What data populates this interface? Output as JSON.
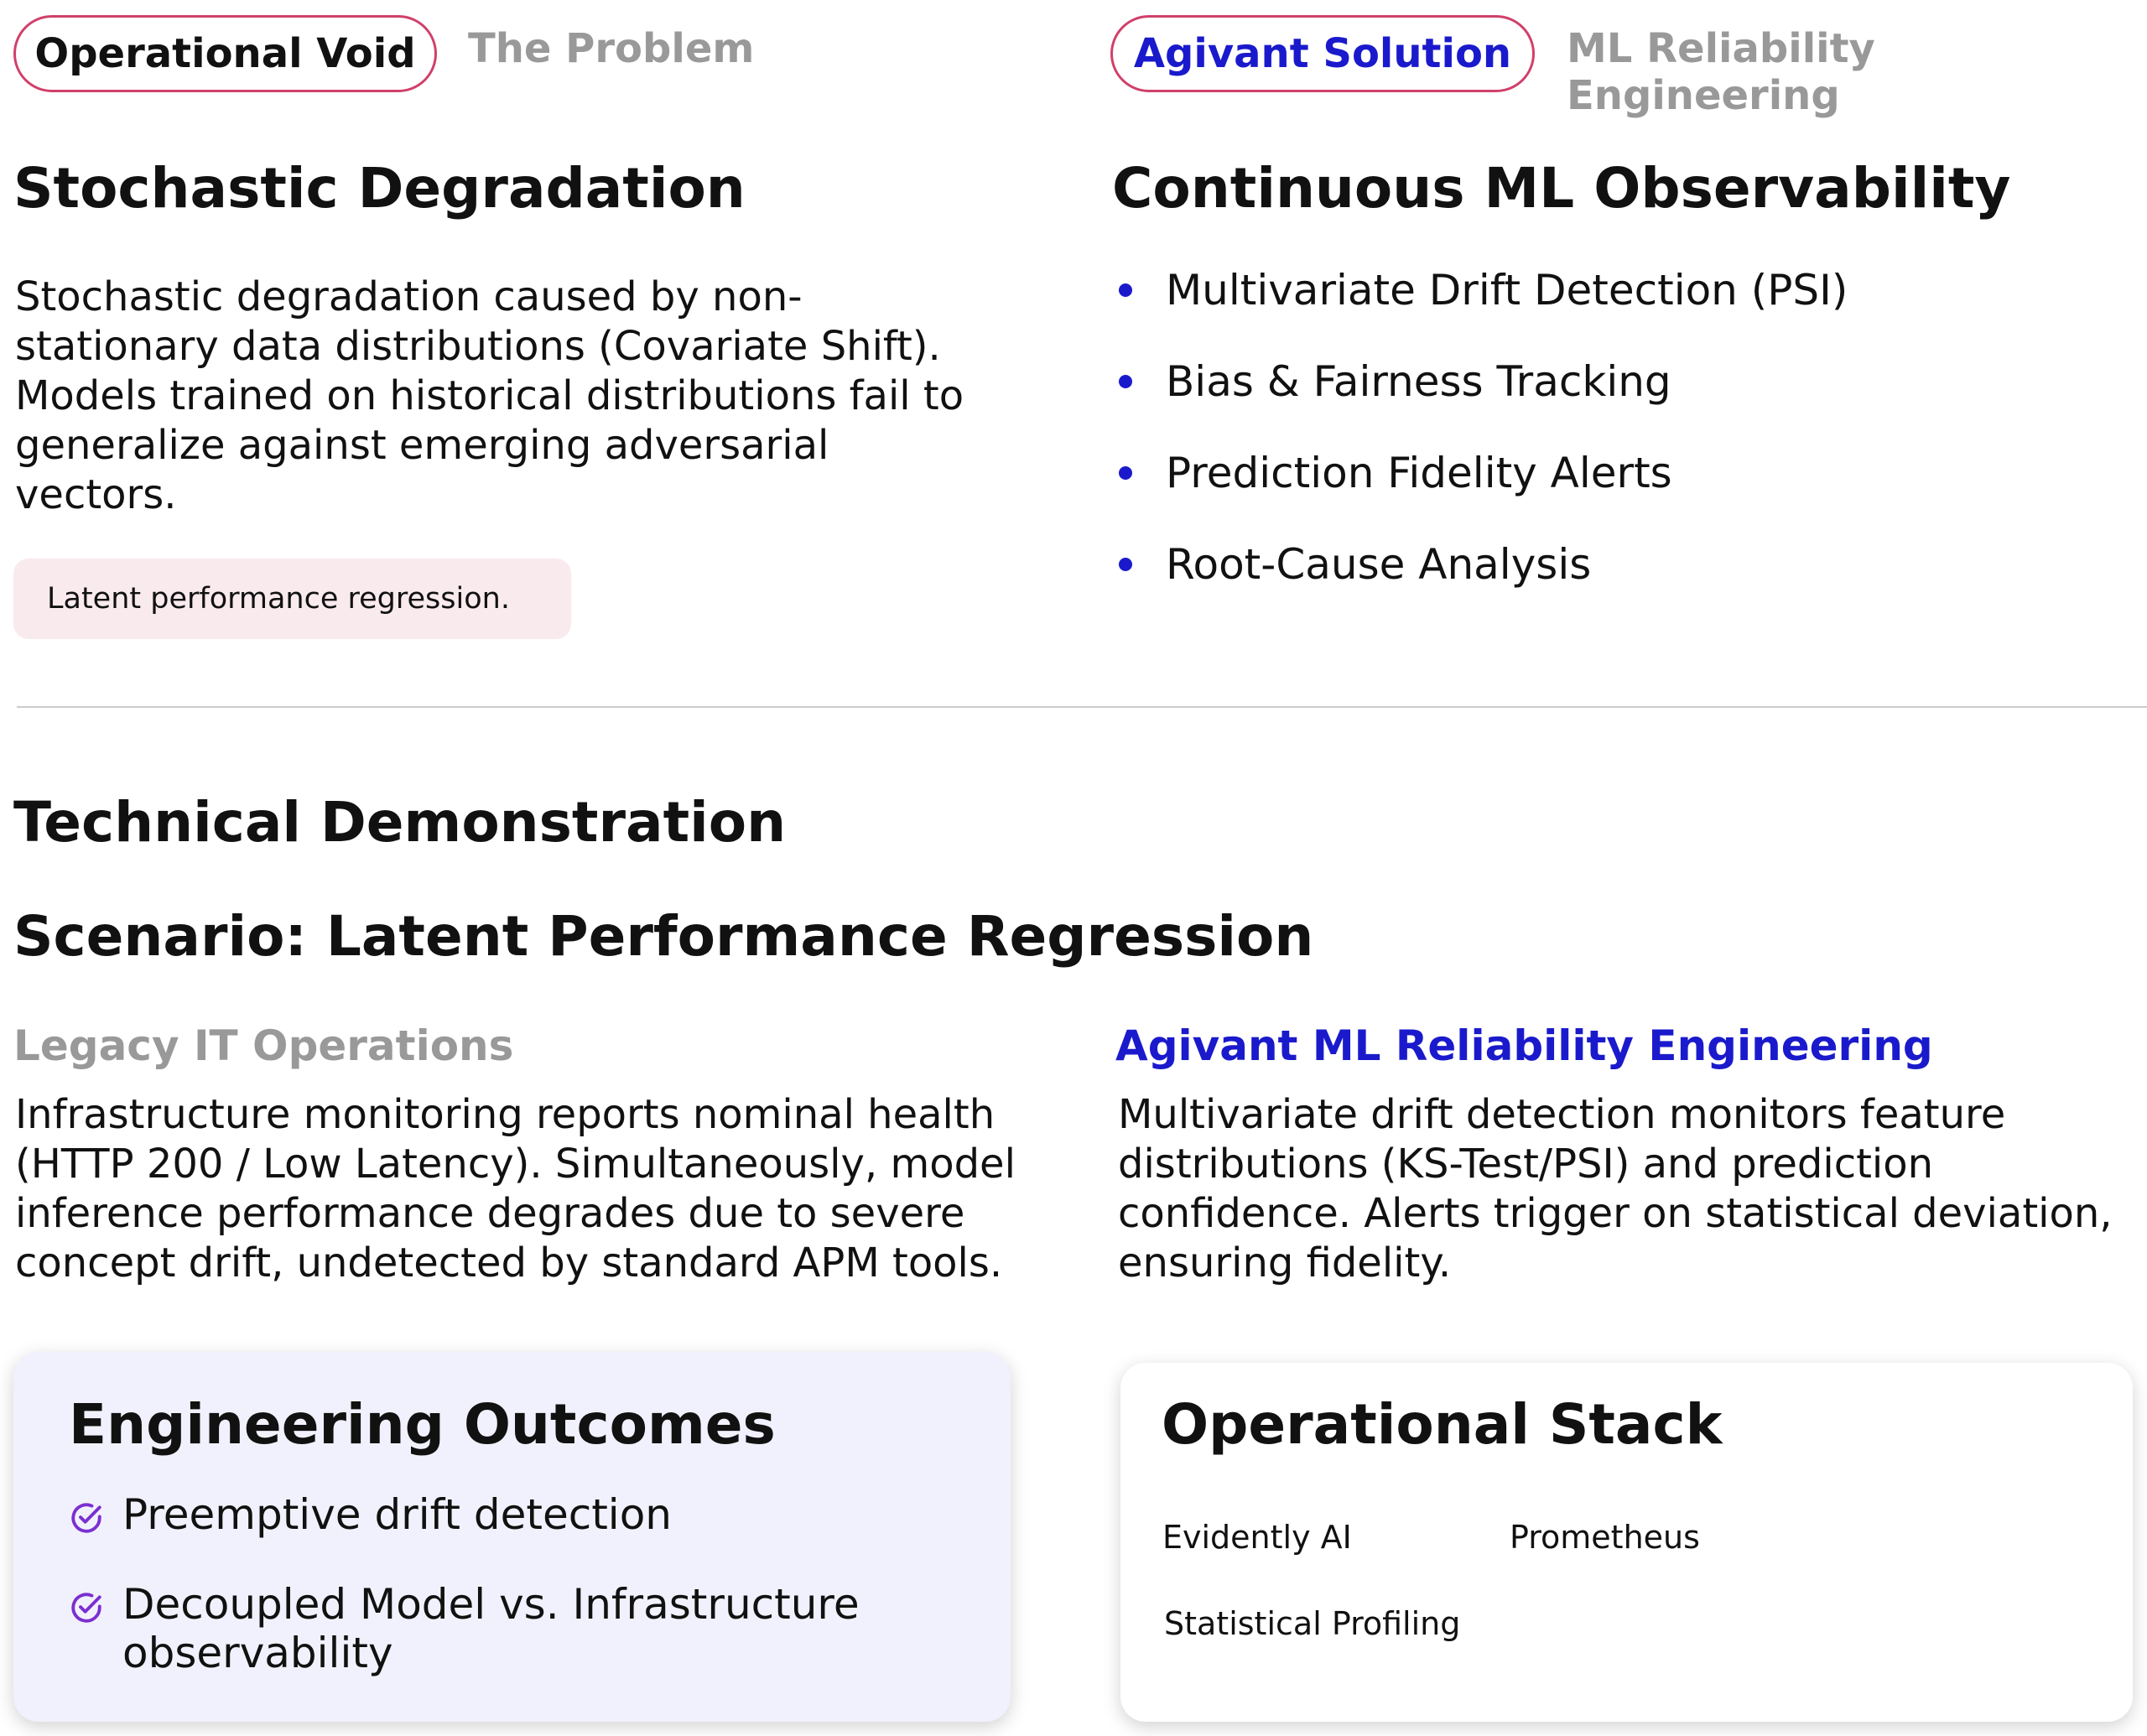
{
  "problem": {
    "pill": "Operational Void",
    "tab": "The Problem",
    "heading": "Stochastic Degradation",
    "body": "Stochastic degradation caused by non-stationary data distributions (Covariate Shift). Models trained on historical distributions fail to generalize against emerging adversarial vectors.",
    "note": "Latent performance regression."
  },
  "solution": {
    "pill": "Agivant Solution",
    "tab": "ML Reliability Engineering",
    "heading": "Continuous ML Observability",
    "bullets": [
      "Multivariate Drift Detection (PSI)",
      "Bias & Fairness Tracking",
      "Prediction Fidelity Alerts",
      "Root-Cause Analysis"
    ]
  },
  "demo": {
    "title": "Technical Demonstration",
    "scenario": "Scenario: Latent Performance Regression",
    "legacy": {
      "label": "Legacy IT Operations",
      "body": "Infrastructure monitoring reports nominal health (HTTP 200 / Low Latency). Simultaneously, model inference performance degrades due to severe concept drift, undetected by standard APM tools."
    },
    "agivant": {
      "label": "Agivant ML Reliability Engineering",
      "body": "Multivariate drift detection monitors feature distributions (KS-Test/PSI) and prediction confidence. Alerts trigger on statistical deviation, ensuring fidelity."
    }
  },
  "outcomes": {
    "title": "Engineering Outcomes",
    "items": [
      "Preemptive drift detection",
      "Decoupled Model vs. Infrastructure observability"
    ],
    "icon": "check-circle-icon"
  },
  "stack": {
    "title": "Operational Stack",
    "items": [
      "Evidently AI",
      "Prometheus",
      "Statistical Profiling"
    ]
  },
  "colors": {
    "accent_blue": "#1a1acc",
    "accent_pink": "#d0406a",
    "check_purple": "#7b2fd0",
    "card_tint": "#f1f1fd"
  }
}
